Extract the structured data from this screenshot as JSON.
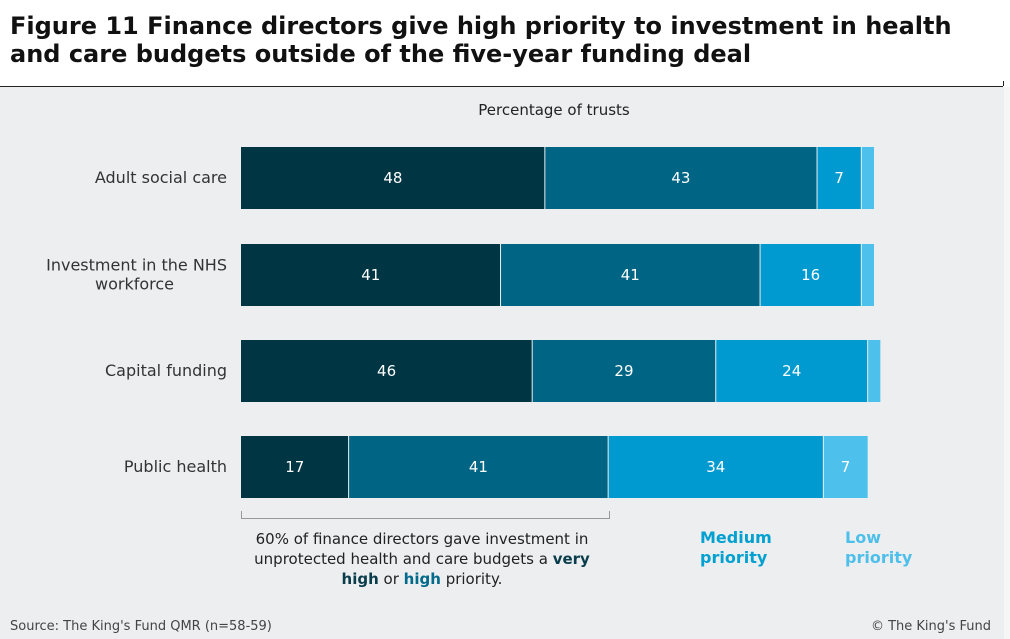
{
  "title": "Figure 11 Finance directors give high priority to investment in health and care budgets outside of the five-year funding deal",
  "chart_data": {
    "type": "bar",
    "orientation": "horizontal",
    "stacked": true,
    "title": "Figure 11 Finance directors give high priority to investment in health and care budgets outside of the five-year funding deal",
    "xlabel": "Percentage of trusts",
    "xlim": [
      0,
      100
    ],
    "categories": [
      [
        "Adult social care"
      ],
      [
        "Investment in the NHS",
        "workforce"
      ],
      [
        "Capital funding"
      ],
      [
        "Public health"
      ]
    ],
    "series": [
      {
        "name": "Very high priority",
        "color": "#003544",
        "values": [
          48,
          41,
          46,
          17
        ]
      },
      {
        "name": "High priority",
        "color": "#006585",
        "values": [
          43,
          41,
          29,
          41
        ]
      },
      {
        "name": "Medium priority",
        "color": "#009ad0",
        "values": [
          7,
          16,
          24,
          34
        ]
      },
      {
        "name": "Low priority",
        "color": "#4ec0ec",
        "values": [
          2,
          2,
          2,
          7
        ]
      }
    ],
    "value_labels": [
      [
        "48",
        "43",
        "7",
        ""
      ],
      [
        "41",
        "41",
        "16",
        ""
      ],
      [
        "46",
        "29",
        "24",
        ""
      ],
      [
        "17",
        "41",
        "34",
        "7"
      ]
    ],
    "bracket_note": {
      "line1": "60% of finance directors gave investment in",
      "line2_prefix": "unprotected health and care budgets a ",
      "very": "very",
      "high_word": "high",
      "or": " or ",
      "high2": "high",
      "suffix": " priority."
    }
  },
  "legend": {
    "medium": [
      "Medium",
      "priority"
    ],
    "low": [
      "Low",
      "priority"
    ]
  },
  "footer": {
    "source": "Source: The King's Fund QMR (n=58-59)",
    "copyright": "© The King's Fund"
  }
}
